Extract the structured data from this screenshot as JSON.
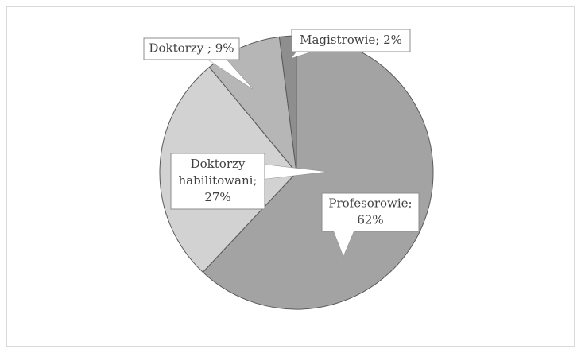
{
  "chart_data": {
    "type": "pie",
    "values": [
      62,
      27,
      9,
      2
    ],
    "value_labels": [
      [
        "Profesorowie;",
        "62%"
      ],
      [
        "Doktorzy",
        "habilitowani;",
        "27%"
      ],
      [
        "Doktorzy ; 9%"
      ],
      [
        "Magistrowie; 2%"
      ]
    ],
    "colors": [
      "#a3a3a3",
      "#d2d2d2",
      "#b6b6b6",
      "#8e8e8e"
    ]
  }
}
